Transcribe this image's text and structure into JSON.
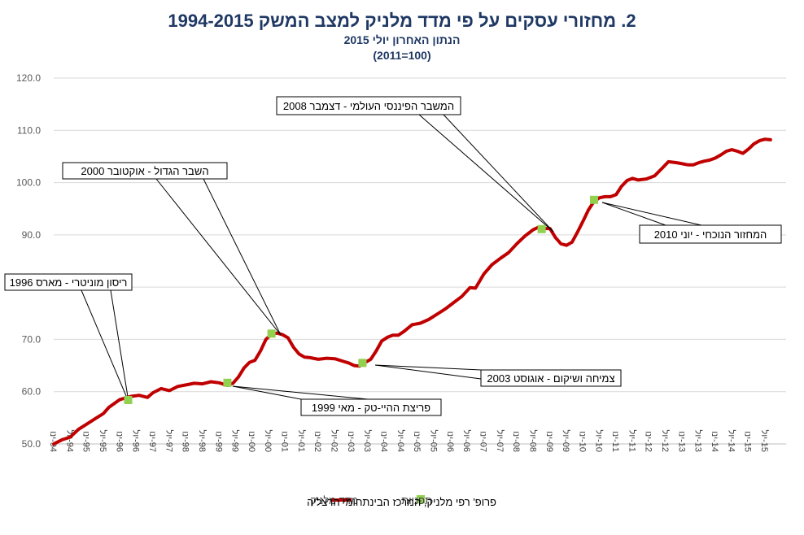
{
  "chart_data": {
    "type": "line",
    "title": "2. מחזורי עסקים על פי מדד מלניק למצב המשק 1994-2015",
    "subtitle": "הנתון האחרון יולי 2015",
    "subtitle2": "(100=2011)",
    "ylim": [
      50,
      120
    ],
    "yticks": [
      "50.0",
      "60.0",
      "70.0",
      "80.0",
      "90.0",
      "100.0",
      "110.0",
      "120.0"
    ],
    "ytick_values": [
      50,
      60,
      70,
      80,
      90,
      100,
      110,
      120
    ],
    "xtick_labels": [
      "94-ינו",
      "94-יול",
      "95-ינו",
      "95-יול",
      "96-ינו",
      "96-יול",
      "97-ינו",
      "97-יול",
      "98-ינו",
      "98-יול",
      "99-ינו",
      "99-יול",
      "00-ינו",
      "00-יול",
      "01-ינו",
      "01-יול",
      "02-ינו",
      "02-יול",
      "03-ינו",
      "03-יול",
      "04-ינו",
      "04-יול",
      "05-ינו",
      "05-יול",
      "06-ינו",
      "06-יול",
      "07-ינו",
      "07-יול",
      "08-ינו",
      "08-יול",
      "09-ינו",
      "09-יול",
      "10-ינו",
      "10-יול",
      "11-ינו",
      "11-יול",
      "12-ינו",
      "12-יול",
      "13-ינו",
      "13-יול",
      "14-ינו",
      "14-יול",
      "15-ינו",
      "15-יול"
    ],
    "xtick_values": [
      0,
      6,
      12,
      18,
      24,
      30,
      36,
      42,
      48,
      54,
      60,
      66,
      72,
      78,
      84,
      90,
      96,
      102,
      108,
      114,
      120,
      126,
      132,
      138,
      144,
      150,
      156,
      162,
      168,
      174,
      180,
      186,
      192,
      198,
      204,
      210,
      216,
      222,
      228,
      234,
      240,
      246,
      252,
      258
    ],
    "xlim": [
      0,
      258
    ],
    "series": [
      {
        "name": "מדד מלניק",
        "color": "#c00000",
        "points": [
          [
            0,
            50
          ],
          [
            3,
            50.8
          ],
          [
            6,
            51.3
          ],
          [
            9,
            52.8
          ],
          [
            12,
            53.8
          ],
          [
            15,
            54.8
          ],
          [
            18,
            55.8
          ],
          [
            20,
            57
          ],
          [
            24,
            58.5
          ],
          [
            28,
            59.1
          ],
          [
            31,
            59.3
          ],
          [
            34,
            58.9
          ],
          [
            36,
            59.8
          ],
          [
            39,
            60.6
          ],
          [
            42,
            60.2
          ],
          [
            45,
            61
          ],
          [
            48,
            61.3
          ],
          [
            51,
            61.6
          ],
          [
            54,
            61.5
          ],
          [
            57,
            61.9
          ],
          [
            60,
            61.7
          ],
          [
            63,
            61.2
          ],
          [
            65,
            61.6
          ],
          [
            67,
            62.8
          ],
          [
            69,
            64.5
          ],
          [
            71,
            65.6
          ],
          [
            73,
            66
          ],
          [
            75,
            67.8
          ],
          [
            77,
            70
          ],
          [
            79,
            71
          ],
          [
            81,
            71.2
          ],
          [
            83,
            70.9
          ],
          [
            85,
            70.3
          ],
          [
            87,
            68.5
          ],
          [
            89,
            67.2
          ],
          [
            91,
            66.6
          ],
          [
            93,
            66.5
          ],
          [
            96,
            66.2
          ],
          [
            99,
            66.4
          ],
          [
            102,
            66.3
          ],
          [
            105,
            65.8
          ],
          [
            107,
            65.5
          ],
          [
            109,
            65
          ],
          [
            111,
            64.9
          ],
          [
            113,
            65.6
          ],
          [
            115,
            66.2
          ],
          [
            117,
            67.8
          ],
          [
            119,
            69.7
          ],
          [
            121,
            70.4
          ],
          [
            123,
            70.8
          ],
          [
            125,
            70.8
          ],
          [
            127,
            71.5
          ],
          [
            130,
            72.8
          ],
          [
            133,
            73.1
          ],
          [
            136,
            73.8
          ],
          [
            139,
            74.8
          ],
          [
            142,
            75.8
          ],
          [
            145,
            77
          ],
          [
            148,
            78.2
          ],
          [
            151,
            79.9
          ],
          [
            153,
            79.8
          ],
          [
            156,
            82.5
          ],
          [
            159,
            84.3
          ],
          [
            162,
            85.5
          ],
          [
            165,
            86.6
          ],
          [
            168,
            88.3
          ],
          [
            171,
            89.8
          ],
          [
            174,
            91
          ],
          [
            176,
            91.5
          ],
          [
            178,
            91.2
          ],
          [
            180,
            91.2
          ],
          [
            182,
            89.5
          ],
          [
            184,
            88.3
          ],
          [
            186,
            88
          ],
          [
            188,
            88.6
          ],
          [
            190,
            90.5
          ],
          [
            192,
            92.6
          ],
          [
            194,
            94.8
          ],
          [
            196,
            96.4
          ],
          [
            198,
            97.1
          ],
          [
            200,
            97.3
          ],
          [
            202,
            97.3
          ],
          [
            204,
            97.7
          ],
          [
            206,
            99.3
          ],
          [
            208,
            100.4
          ],
          [
            210,
            100.8
          ],
          [
            212,
            100.5
          ],
          [
            215,
            100.7
          ],
          [
            218,
            101.3
          ],
          [
            221,
            102.9
          ],
          [
            223,
            104
          ],
          [
            226,
            103.8
          ],
          [
            228,
            103.6
          ],
          [
            230,
            103.4
          ],
          [
            232,
            103.4
          ],
          [
            234,
            103.8
          ],
          [
            236,
            104.1
          ],
          [
            238,
            104.3
          ],
          [
            240,
            104.7
          ],
          [
            242,
            105.3
          ],
          [
            244,
            106
          ],
          [
            246,
            106.3
          ],
          [
            248,
            106
          ],
          [
            250,
            105.6
          ],
          [
            252,
            106.4
          ],
          [
            254,
            107.4
          ],
          [
            256,
            108
          ],
          [
            258,
            108.3
          ],
          [
            260,
            108.2
          ]
        ]
      }
    ],
    "turning_points": {
      "name": "תפניות",
      "color": "#92d050",
      "points": [
        [
          27,
          58.4
        ],
        [
          79,
          71.1
        ],
        [
          63,
          61.7
        ],
        [
          112,
          65.5
        ],
        [
          177,
          91.1
        ],
        [
          196,
          96.7
        ]
      ]
    },
    "annotations": [
      {
        "label": "ריסון מוניטרי - מארס 1996",
        "point_index": 0
      },
      {
        "label": "השבר הגדול - אוקטובר 2000",
        "point_index": 1
      },
      {
        "label": "פריצת ההיי-טק - מאי 1999",
        "point_index": 2
      },
      {
        "label": "צמיחה ושיקום - אוגוסט 2003",
        "point_index": 3
      },
      {
        "label": "המשבר הפיננסי העולמי - דצמבר 2008",
        "point_index": 4
      },
      {
        "label": "המחזור הנוכחי - יוני 2010",
        "point_index": 5
      }
    ],
    "legend": {
      "line_label": "מדד מלניק",
      "marker_label": "תפניות",
      "position": "bottom"
    },
    "source": "פרופ' רפי מלניק, המרכז הבינתחומי הרצליה"
  }
}
